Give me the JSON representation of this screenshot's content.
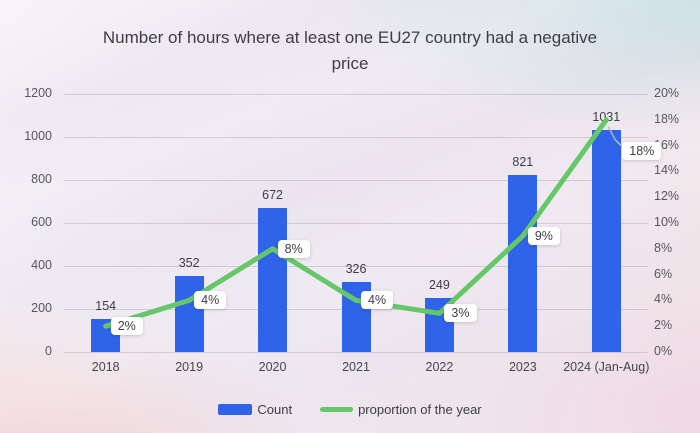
{
  "title": "Number of hours where at least one EU27 country had a negative price",
  "chart_data": {
    "type": "bar+line",
    "title": "Number of hours where at least one EU27 country had a negative price",
    "categories": [
      "2018",
      "2019",
      "2020",
      "2021",
      "2022",
      "2023",
      "2024 (Jan-Aug)"
    ],
    "series": [
      {
        "name": "Count",
        "type": "bar",
        "axis": "left",
        "color": "#2f63e9",
        "values": [
          154,
          352,
          672,
          326,
          249,
          821,
          1031
        ],
        "labels": [
          "154",
          "352",
          "672",
          "326",
          "249",
          "821",
          "1031"
        ]
      },
      {
        "name": "proportion of the year",
        "type": "line",
        "axis": "right",
        "color": "#65c768",
        "values": [
          2,
          4,
          8,
          4,
          3,
          9,
          18
        ],
        "labels": [
          "2%",
          "4%",
          "8%",
          "4%",
          "3%",
          "9%",
          "18%"
        ]
      }
    ],
    "left_axis": {
      "min": 0,
      "max": 1200,
      "step": 200,
      "ticks": [
        "1200",
        "1000",
        "800",
        "600",
        "400",
        "200",
        "0"
      ]
    },
    "right_axis": {
      "min": 0,
      "max": 20,
      "step": 2,
      "ticks": [
        "20%",
        "18%",
        "16%",
        "14%",
        "12%",
        "10%",
        "8%",
        "6%",
        "4%",
        "2%",
        "0%"
      ]
    },
    "grid": "horizontal gridlines on",
    "legend_position": "bottom"
  },
  "legend": {
    "items": [
      {
        "label": "Count",
        "swatch": "bar",
        "color": "#2f63e9"
      },
      {
        "label": "proportion of the year",
        "swatch": "line",
        "color": "#65c768"
      }
    ]
  },
  "colors": {
    "bar": "#2f63e9",
    "line": "#65c768",
    "title_text": "#3d3d46",
    "axis_text": "#56565f",
    "gridline": "rgba(148,132,148,0.30)",
    "label_box_bg": "#ffffff",
    "leader_line": "#b6b6bf"
  }
}
